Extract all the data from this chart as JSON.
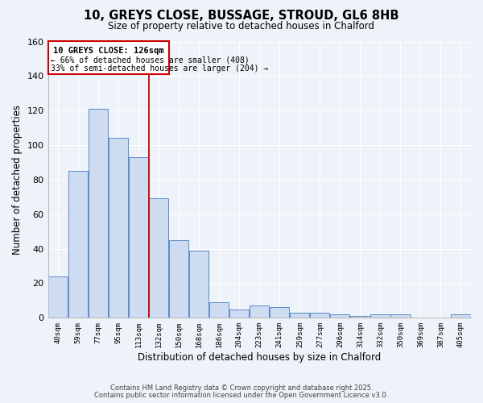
{
  "title": "10, GREYS CLOSE, BUSSAGE, STROUD, GL6 8HB",
  "subtitle": "Size of property relative to detached houses in Chalford",
  "xlabel": "Distribution of detached houses by size in Chalford",
  "ylabel": "Number of detached properties",
  "bar_values": [
    24,
    85,
    121,
    104,
    93,
    69,
    45,
    39,
    9,
    5,
    7,
    6,
    3,
    3,
    2,
    1,
    2,
    2,
    0,
    0,
    2
  ],
  "x_tick_labels": [
    "40sqm",
    "59sqm",
    "77sqm",
    "95sqm",
    "113sqm",
    "132sqm",
    "150sqm",
    "168sqm",
    "186sqm",
    "204sqm",
    "223sqm",
    "241sqm",
    "259sqm",
    "277sqm",
    "296sqm",
    "314sqm",
    "332sqm",
    "350sqm",
    "369sqm",
    "387sqm",
    "405sqm"
  ],
  "ylim": [
    0,
    160
  ],
  "yticks": [
    0,
    20,
    40,
    60,
    80,
    100,
    120,
    140,
    160
  ],
  "bar_color": "#cddcf0",
  "bar_edge_color": "#5b8bc9",
  "vline_color": "#cc0000",
  "vline_position": 4.5,
  "annotation_title": "10 GREYS CLOSE: 126sqm",
  "annotation_line1": "← 66% of detached houses are smaller (408)",
  "annotation_line2": "33% of semi-detached houses are larger (204) →",
  "background_color": "#eef2f9",
  "grid_color": "#ffffff",
  "footer1": "Contains HM Land Registry data © Crown copyright and database right 2025.",
  "footer2": "Contains public sector information licensed under the Open Government Licence v3.0."
}
